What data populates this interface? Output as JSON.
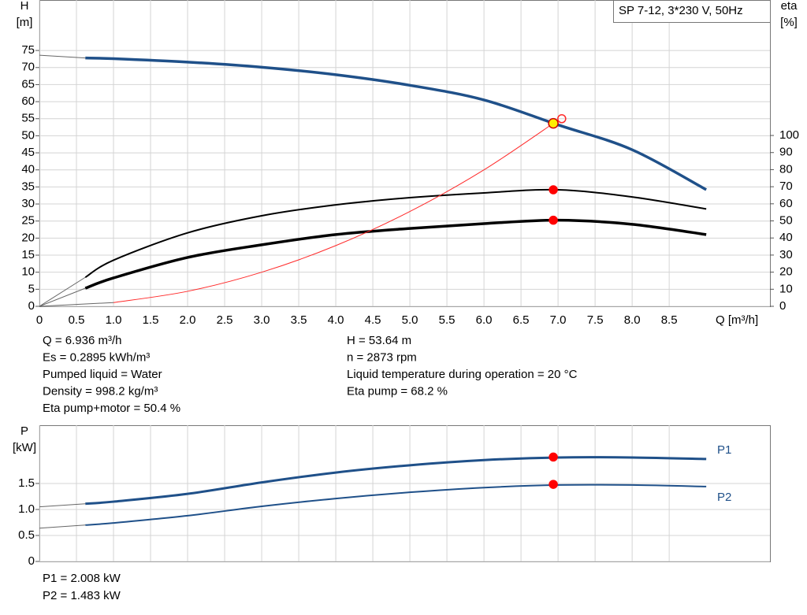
{
  "chart_data": [
    {
      "type": "line",
      "title": "SP 7-12, 3*230 V, 50Hz",
      "ylabel": "H",
      "yunit": "[m]",
      "y2label": "eta",
      "y2unit": "[%]",
      "xlabel": "Q [m³/h]",
      "xlim": [
        0,
        9.86
      ],
      "xticks": [
        0,
        0.5,
        {
          "value": 1,
          "label": "1.0"
        },
        1.5,
        {
          "value": 2,
          "label": "2.0"
        },
        2.5,
        {
          "value": 3,
          "label": "3.0"
        },
        3.5,
        {
          "value": 4,
          "label": "4.0"
        },
        4.5,
        {
          "value": 5,
          "label": "5.0"
        },
        5.5,
        {
          "value": 6,
          "label": "6.0"
        },
        6.5,
        {
          "value": 7,
          "label": "7.0"
        },
        7.5,
        {
          "value": 8,
          "label": "8.0"
        },
        8.5
      ],
      "ylim": [
        0,
        89.8
      ],
      "yticks": [
        0,
        5,
        10,
        15,
        20,
        25,
        30,
        35,
        40,
        45,
        50,
        55,
        60,
        65,
        70,
        75
      ],
      "y2lim": [
        0,
        179.3
      ],
      "y2ticks": [
        0,
        10,
        20,
        30,
        40,
        50,
        60,
        70,
        80,
        90,
        100
      ],
      "grid": true,
      "series": [
        {
          "color": "#1f5089",
          "width": 3.5,
          "x": [
            0,
            0.62,
            1,
            2,
            3,
            4,
            5,
            6,
            7,
            8,
            9
          ],
          "values": [
            73.6,
            72.8,
            72.6,
            71.6,
            70.1,
            67.9,
            64.8,
            60.5,
            53.2,
            45.9,
            34.2
          ]
        },
        {
          "color": "#000000",
          "width": 2,
          "axis": "y2",
          "x": [
            0,
            0.62,
            1,
            2,
            3,
            4,
            5,
            6,
            7,
            8,
            9
          ],
          "values": [
            0,
            17,
            27,
            43,
            53,
            59.4,
            63.6,
            66.4,
            68.2,
            64,
            57
          ]
        },
        {
          "color": "#000000",
          "width": 3.5,
          "axis": "y2",
          "x": [
            0,
            0.62,
            1,
            2,
            3,
            4,
            5,
            6,
            7,
            8,
            9
          ],
          "values": [
            0,
            10.6,
            16.6,
            28.6,
            36,
            42,
            45.6,
            48.4,
            50.4,
            48,
            42
          ]
        },
        {
          "color": "#ff2a2a",
          "width": 1,
          "x": [
            0,
            1,
            2,
            3,
            4,
            5,
            6,
            7
          ],
          "values": [
            0,
            1.1,
            4.4,
            10,
            17.8,
            27.8,
            40,
            54.6
          ]
        }
      ],
      "markers": [
        {
          "x": 7.05,
          "y": 55,
          "color": "none",
          "edge": "#ff2a2a",
          "r": 5
        },
        {
          "x": 6.936,
          "y": 68.2,
          "axis": "y2",
          "color": "#ff0000",
          "edge": "#ff0000",
          "r": 5
        },
        {
          "x": 6.936,
          "y": 50.4,
          "axis": "y2",
          "color": "#ff0000",
          "edge": "#ff0000",
          "r": 5
        },
        {
          "x": 6.936,
          "y": 53.64,
          "color": "#ffee00",
          "edge": "#cc0000",
          "r": 6
        }
      ]
    },
    {
      "type": "line",
      "ylabel": "P",
      "yunit": "[kW]",
      "xlim": [
        0,
        9.86
      ],
      "ylim": [
        0,
        2.62
      ],
      "yticks": [
        0,
        0.5,
        {
          "value": 1,
          "label": "1.0"
        },
        1.5
      ],
      "grid": true,
      "series": [
        {
          "name": "P1",
          "color": "#1f5089",
          "width": 3,
          "x": [
            0,
            0.62,
            1,
            2,
            3,
            4,
            5,
            6,
            7,
            8,
            9
          ],
          "values": [
            1.05,
            1.11,
            1.15,
            1.3,
            1.52,
            1.71,
            1.85,
            1.95,
            2.0,
            2.0,
            1.97
          ]
        },
        {
          "name": "P2",
          "color": "#1f5089",
          "width": 2,
          "x": [
            0,
            0.62,
            1,
            2,
            3,
            4,
            5,
            6,
            7,
            8,
            9
          ],
          "values": [
            0.64,
            0.7,
            0.74,
            0.88,
            1.06,
            1.21,
            1.33,
            1.42,
            1.47,
            1.47,
            1.44
          ]
        }
      ],
      "markers": [
        {
          "x": 6.936,
          "y": 2.008,
          "color": "#ff0000",
          "edge": "#ff0000",
          "r": 5
        },
        {
          "x": 6.936,
          "y": 1.483,
          "color": "#ff0000",
          "edge": "#ff0000",
          "r": 5
        }
      ]
    }
  ],
  "info": {
    "left": [
      "Q = 6.936 m³/h",
      "Es = 0.2895 kWh/m³",
      "Pumped liquid = Water",
      "Density = 998.2 kg/m³",
      "Eta pump+motor = 50.4 %"
    ],
    "right": [
      "H = 53.64 m",
      "n = 2873 rpm",
      "Liquid temperature during operation = 20 °C",
      "Eta pump = 68.2 %"
    ]
  },
  "power_info": [
    "P1 = 2.008 kW",
    "P2 = 1.483 kW"
  ]
}
